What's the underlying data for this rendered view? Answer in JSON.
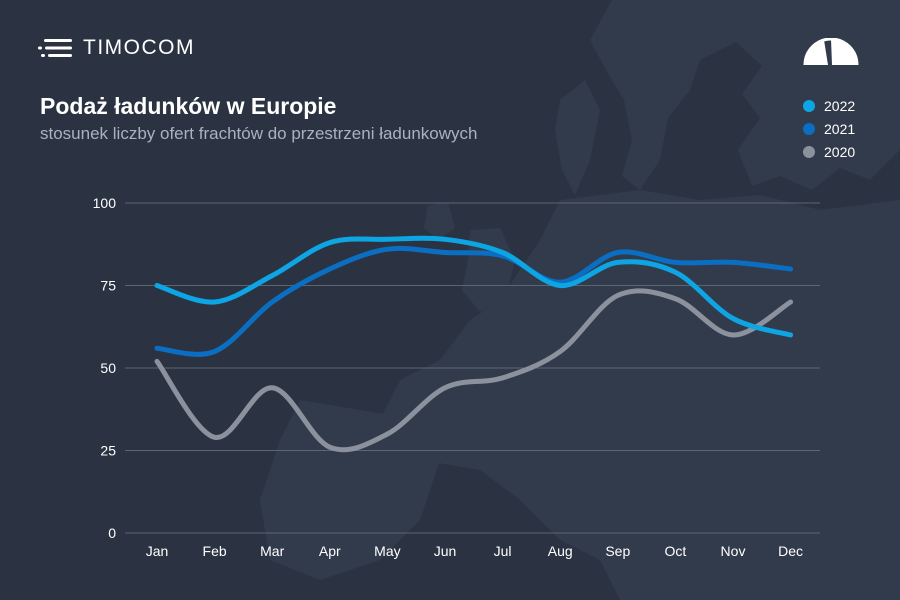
{
  "brand": {
    "name": "TIMOCOM",
    "logo_icon": "speed-lines-icon",
    "corner_icon": "gauge-icon"
  },
  "colors": {
    "background": "#2b3342",
    "series_2022": "#0ea5e4",
    "series_2021": "#0a6fc2",
    "series_2020": "#8b929e",
    "grid": "#5d6573"
  },
  "chart_data": {
    "type": "line",
    "title": "Podaż ładunków w Europie",
    "subtitle": "stosunek liczby ofert frachtów do przestrzeni ładunkowych",
    "categories": [
      "Jan",
      "Feb",
      "Mar",
      "Apr",
      "May",
      "Jun",
      "Jul",
      "Aug",
      "Sep",
      "Oct",
      "Nov",
      "Dec"
    ],
    "series": [
      {
        "name": "2022",
        "values": [
          75,
          70,
          78,
          88,
          89,
          89,
          85,
          75,
          82,
          79,
          65,
          60
        ]
      },
      {
        "name": "2021",
        "values": [
          56,
          55,
          70,
          80,
          86,
          85,
          84,
          76,
          85,
          82,
          82,
          80
        ]
      },
      {
        "name": "2020",
        "values": [
          52,
          29,
          44,
          26,
          30,
          44,
          47,
          55,
          72,
          71,
          60,
          70
        ]
      }
    ],
    "yticks": [
      0,
      25,
      50,
      75,
      100
    ],
    "ylim": [
      0,
      100
    ],
    "grid": true,
    "legend_position": "top-right"
  }
}
